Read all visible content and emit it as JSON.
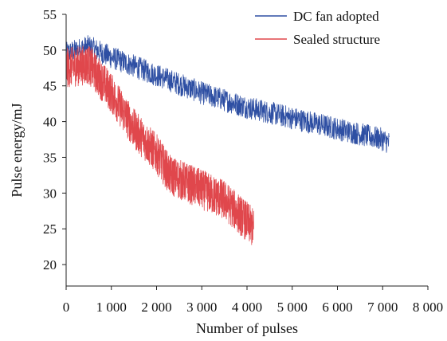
{
  "chart_data": {
    "type": "line",
    "title": "",
    "xlabel": "Number of pulses",
    "ylabel": "Pulse energy/mJ",
    "xlim": [
      0,
      8000
    ],
    "ylim": [
      17,
      55
    ],
    "xticks": [
      0,
      1000,
      2000,
      3000,
      4000,
      5000,
      6000,
      7000,
      8000
    ],
    "xtick_labels": [
      "0",
      "1 000",
      "2 000",
      "3 000",
      "4 000",
      "5 000",
      "6 000",
      "7 000",
      "8 000"
    ],
    "yticks": [
      20,
      25,
      30,
      35,
      40,
      45,
      50,
      55
    ],
    "ytick_labels": [
      "20",
      "25",
      "30",
      "35",
      "40",
      "45",
      "50",
      "55"
    ],
    "grid": false,
    "legend_position": "top-right",
    "series": [
      {
        "name": "DC fan adopted",
        "color": "#2e4fa3",
        "noise": 1.6,
        "x_end": 7150,
        "trend": [
          [
            0,
            49.5
          ],
          [
            500,
            50.5
          ],
          [
            1000,
            49.0
          ],
          [
            2000,
            46.5
          ],
          [
            3000,
            44.0
          ],
          [
            4000,
            42.0
          ],
          [
            5000,
            40.5
          ],
          [
            6000,
            39.0
          ],
          [
            7000,
            37.5
          ],
          [
            7150,
            37.0
          ]
        ]
      },
      {
        "name": "Sealed structure",
        "color": "#e0474c",
        "noise": 2.8,
        "x_end": 4150,
        "trend": [
          [
            0,
            47.5
          ],
          [
            500,
            48.0
          ],
          [
            1000,
            44.0
          ],
          [
            1500,
            39.0
          ],
          [
            2000,
            35.5
          ],
          [
            2300,
            32.5
          ],
          [
            3000,
            30.5
          ],
          [
            3500,
            29.0
          ],
          [
            4000,
            26.0
          ],
          [
            4150,
            25.0
          ]
        ]
      }
    ]
  }
}
